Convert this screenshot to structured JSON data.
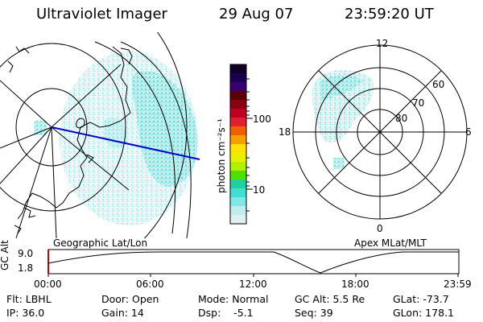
{
  "header": {
    "instrument": "Ultraviolet Imager",
    "date": "29 Aug 07",
    "time": "23:59:20 UT"
  },
  "geo_panel": {
    "label": "Geographic Lat/Lon"
  },
  "colorbar": {
    "unit_label": "photon cm⁻²s⁻¹",
    "ticks": [
      "100",
      "10"
    ],
    "colors": [
      "#100028",
      "#1a0050",
      "#3a0070",
      "#5a0000",
      "#8a0010",
      "#c00020",
      "#e02030",
      "#f06000",
      "#f5a000",
      "#ffe000",
      "#e8f000",
      "#b0f000",
      "#50e000",
      "#20d0a0",
      "#40e0d0",
      "#80e8e8",
      "#c0ecec",
      "#e0f0f0"
    ]
  },
  "polar_panel": {
    "label": "Apex MLat/MLT",
    "mlt_labels": [
      "12",
      "18",
      "6",
      "0"
    ],
    "lat_labels": [
      "60",
      "70",
      "80"
    ]
  },
  "altitude_plot": {
    "axis_label": "GC Alt",
    "y_ticks": [
      "9.0",
      "1.8"
    ],
    "x_ticks": [
      "00:00",
      "06:00",
      "12:00",
      "18:00",
      "23:59"
    ]
  },
  "footer": {
    "row1": {
      "flt": "Flt: LBHL",
      "door": "Door: Open",
      "mode": "Mode: Normal",
      "gc_alt": "GC Alt: 5.5 Re",
      "glat": "GLat: -73.7"
    },
    "row2": {
      "ip": "IP: 36.0",
      "gain": "Gain: 14",
      "dsp": "Dsp:    -5.1",
      "seq": "Seq: 39",
      "glon": "GLon: 178.1"
    }
  }
}
